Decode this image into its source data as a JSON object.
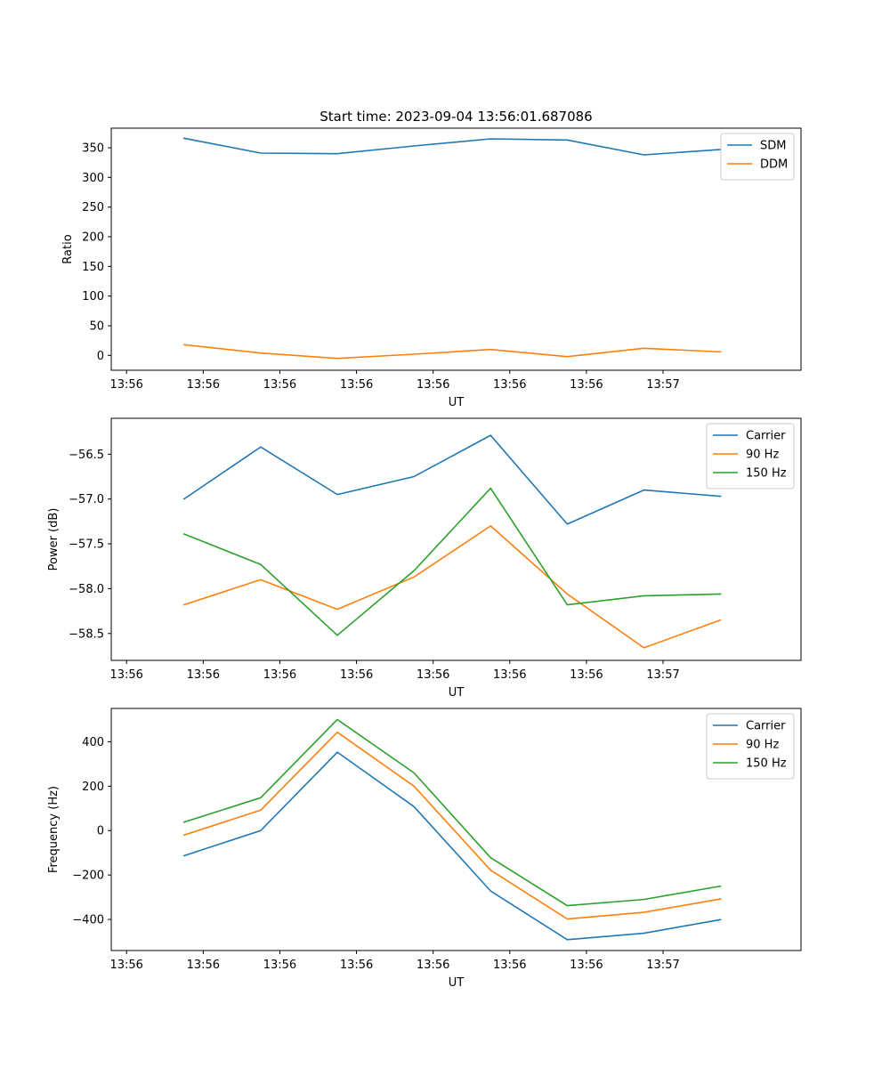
{
  "figure_title": "Start time: 2023-09-04 13:56:01.687086",
  "colors": {
    "blue": "#1f77b4",
    "orange": "#ff7f0e",
    "green": "#2ca02c"
  },
  "chart_data": [
    {
      "type": "line",
      "xlabel": "UT",
      "ylabel": "Ratio",
      "x_tick_labels": [
        "13:56",
        "13:56",
        "13:56",
        "13:56",
        "13:56",
        "13:56",
        "13:56",
        "13:57"
      ],
      "y_ticks": [
        0,
        50,
        100,
        150,
        200,
        250,
        300,
        350
      ],
      "y_tick_labels": [
        "0",
        "50",
        "100",
        "150",
        "200",
        "250",
        "300",
        "350"
      ],
      "xlim": [
        -0.2,
        8.8
      ],
      "ylim": [
        -25,
        383
      ],
      "x": [
        0.75,
        1.75,
        2.75,
        3.75,
        4.75,
        5.75,
        6.75,
        7.75
      ],
      "legend_location": "upper right",
      "series": [
        {
          "name": "SDM",
          "color": "#1f77b4",
          "values": [
            366,
            341,
            340,
            353,
            365,
            363,
            338,
            347
          ]
        },
        {
          "name": "DDM",
          "color": "#ff7f0e",
          "values": [
            18,
            4,
            -5,
            2,
            10,
            -2,
            12,
            6
          ]
        }
      ]
    },
    {
      "type": "line",
      "xlabel": "UT",
      "ylabel": "Power (dB)",
      "x_tick_labels": [
        "13:56",
        "13:56",
        "13:56",
        "13:56",
        "13:56",
        "13:56",
        "13:56",
        "13:57"
      ],
      "y_ticks": [
        -58.5,
        -58.0,
        -57.5,
        -57.0,
        -56.5
      ],
      "y_tick_labels": [
        "−58.5",
        "−58.0",
        "−57.5",
        "−57.0",
        "−56.5"
      ],
      "xlim": [
        -0.2,
        8.8
      ],
      "ylim": [
        -58.8,
        -56.1
      ],
      "x": [
        0.75,
        1.75,
        2.75,
        3.75,
        4.75,
        5.75,
        6.75,
        7.75
      ],
      "legend_location": "upper right",
      "series": [
        {
          "name": "Carrier",
          "color": "#1f77b4",
          "values": [
            -57.0,
            -56.42,
            -56.95,
            -56.75,
            -56.29,
            -57.28,
            -56.9,
            -56.97
          ]
        },
        {
          "name": "90 Hz",
          "color": "#ff7f0e",
          "values": [
            -58.18,
            -57.9,
            -58.23,
            -57.87,
            -57.3,
            -58.06,
            -58.66,
            -58.35
          ]
        },
        {
          "name": "150 Hz",
          "color": "#2ca02c",
          "values": [
            -57.39,
            -57.73,
            -58.52,
            -57.8,
            -56.88,
            -58.18,
            -58.08,
            -58.06
          ]
        }
      ]
    },
    {
      "type": "line",
      "xlabel": "UT",
      "ylabel": "Frequency (Hz)",
      "x_tick_labels": [
        "13:56",
        "13:56",
        "13:56",
        "13:56",
        "13:56",
        "13:56",
        "13:56",
        "13:57"
      ],
      "y_ticks": [
        -400,
        -200,
        0,
        200,
        400
      ],
      "y_tick_labels": [
        "−400",
        "−200",
        "0",
        "200",
        "400"
      ],
      "xlim": [
        -0.2,
        8.8
      ],
      "ylim": [
        -540,
        550
      ],
      "x": [
        0.75,
        1.75,
        2.75,
        3.75,
        4.75,
        5.75,
        6.75,
        7.75
      ],
      "legend_location": "upper right",
      "series": [
        {
          "name": "Carrier",
          "color": "#1f77b4",
          "values": [
            -113,
            0,
            353,
            108,
            -272,
            -491,
            -462,
            -401
          ]
        },
        {
          "name": "90 Hz",
          "color": "#ff7f0e",
          "values": [
            -20,
            92,
            443,
            200,
            -178,
            -398,
            -368,
            -308
          ]
        },
        {
          "name": "150 Hz",
          "color": "#2ca02c",
          "values": [
            38,
            148,
            500,
            260,
            -122,
            -338,
            -310,
            -250
          ]
        }
      ]
    }
  ]
}
